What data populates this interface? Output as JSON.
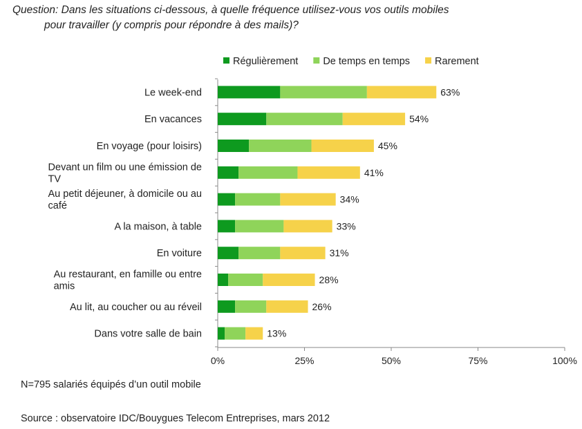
{
  "question": {
    "line1": "Question: Dans les situations ci-dessous, à quelle fréquence utilisez-vous vos outils mobiles",
    "line2": "pour travailler (y compris pour répondre à des mails)?"
  },
  "note": "N=795 salariés équipés d’un outil mobile",
  "source": "Source : observatoire IDC/Bouygues Telecom Entreprises, mars 2012",
  "chart_data": {
    "type": "bar",
    "orientation": "horizontal",
    "stacked": true,
    "xlim": [
      0,
      100
    ],
    "xticks": [
      "0%",
      "25%",
      "50%",
      "75%",
      "100%"
    ],
    "xtick_values": [
      0,
      25,
      50,
      75,
      100
    ],
    "legend_position": "top",
    "categories": [
      [
        "Le week-end"
      ],
      [
        "En vacances"
      ],
      [
        "En voyage (pour loisirs)"
      ],
      [
        "Devant un film ou une émission de",
        "TV"
      ],
      [
        "Au petit déjeuner, à domicile ou au",
        "café"
      ],
      [
        "A la maison, à table"
      ],
      [
        "En voiture"
      ],
      [
        "Au restaurant, en famille ou entre",
        "amis"
      ],
      [
        "Au lit, au coucher ou au réveil"
      ],
      [
        "Dans votre salle de bain"
      ]
    ],
    "series": [
      {
        "name": "Régulièrement",
        "color": "#0e9a1f",
        "values": [
          18,
          14,
          9,
          6,
          5,
          5,
          6,
          3,
          5,
          2
        ]
      },
      {
        "name": "De temps en temps",
        "color": "#8fd45a",
        "values": [
          25,
          22,
          18,
          17,
          13,
          14,
          12,
          10,
          9,
          6
        ]
      },
      {
        "name": "Rarement",
        "color": "#f6d24a",
        "values": [
          20,
          18,
          18,
          18,
          16,
          14,
          13,
          15,
          12,
          5
        ]
      }
    ],
    "totals": [
      63,
      54,
      45,
      41,
      34,
      33,
      31,
      28,
      26,
      13
    ],
    "total_labels": [
      "63%",
      "54%",
      "45%",
      "41%",
      "34%",
      "33%",
      "31%",
      "28%",
      "26%",
      "13%"
    ]
  }
}
